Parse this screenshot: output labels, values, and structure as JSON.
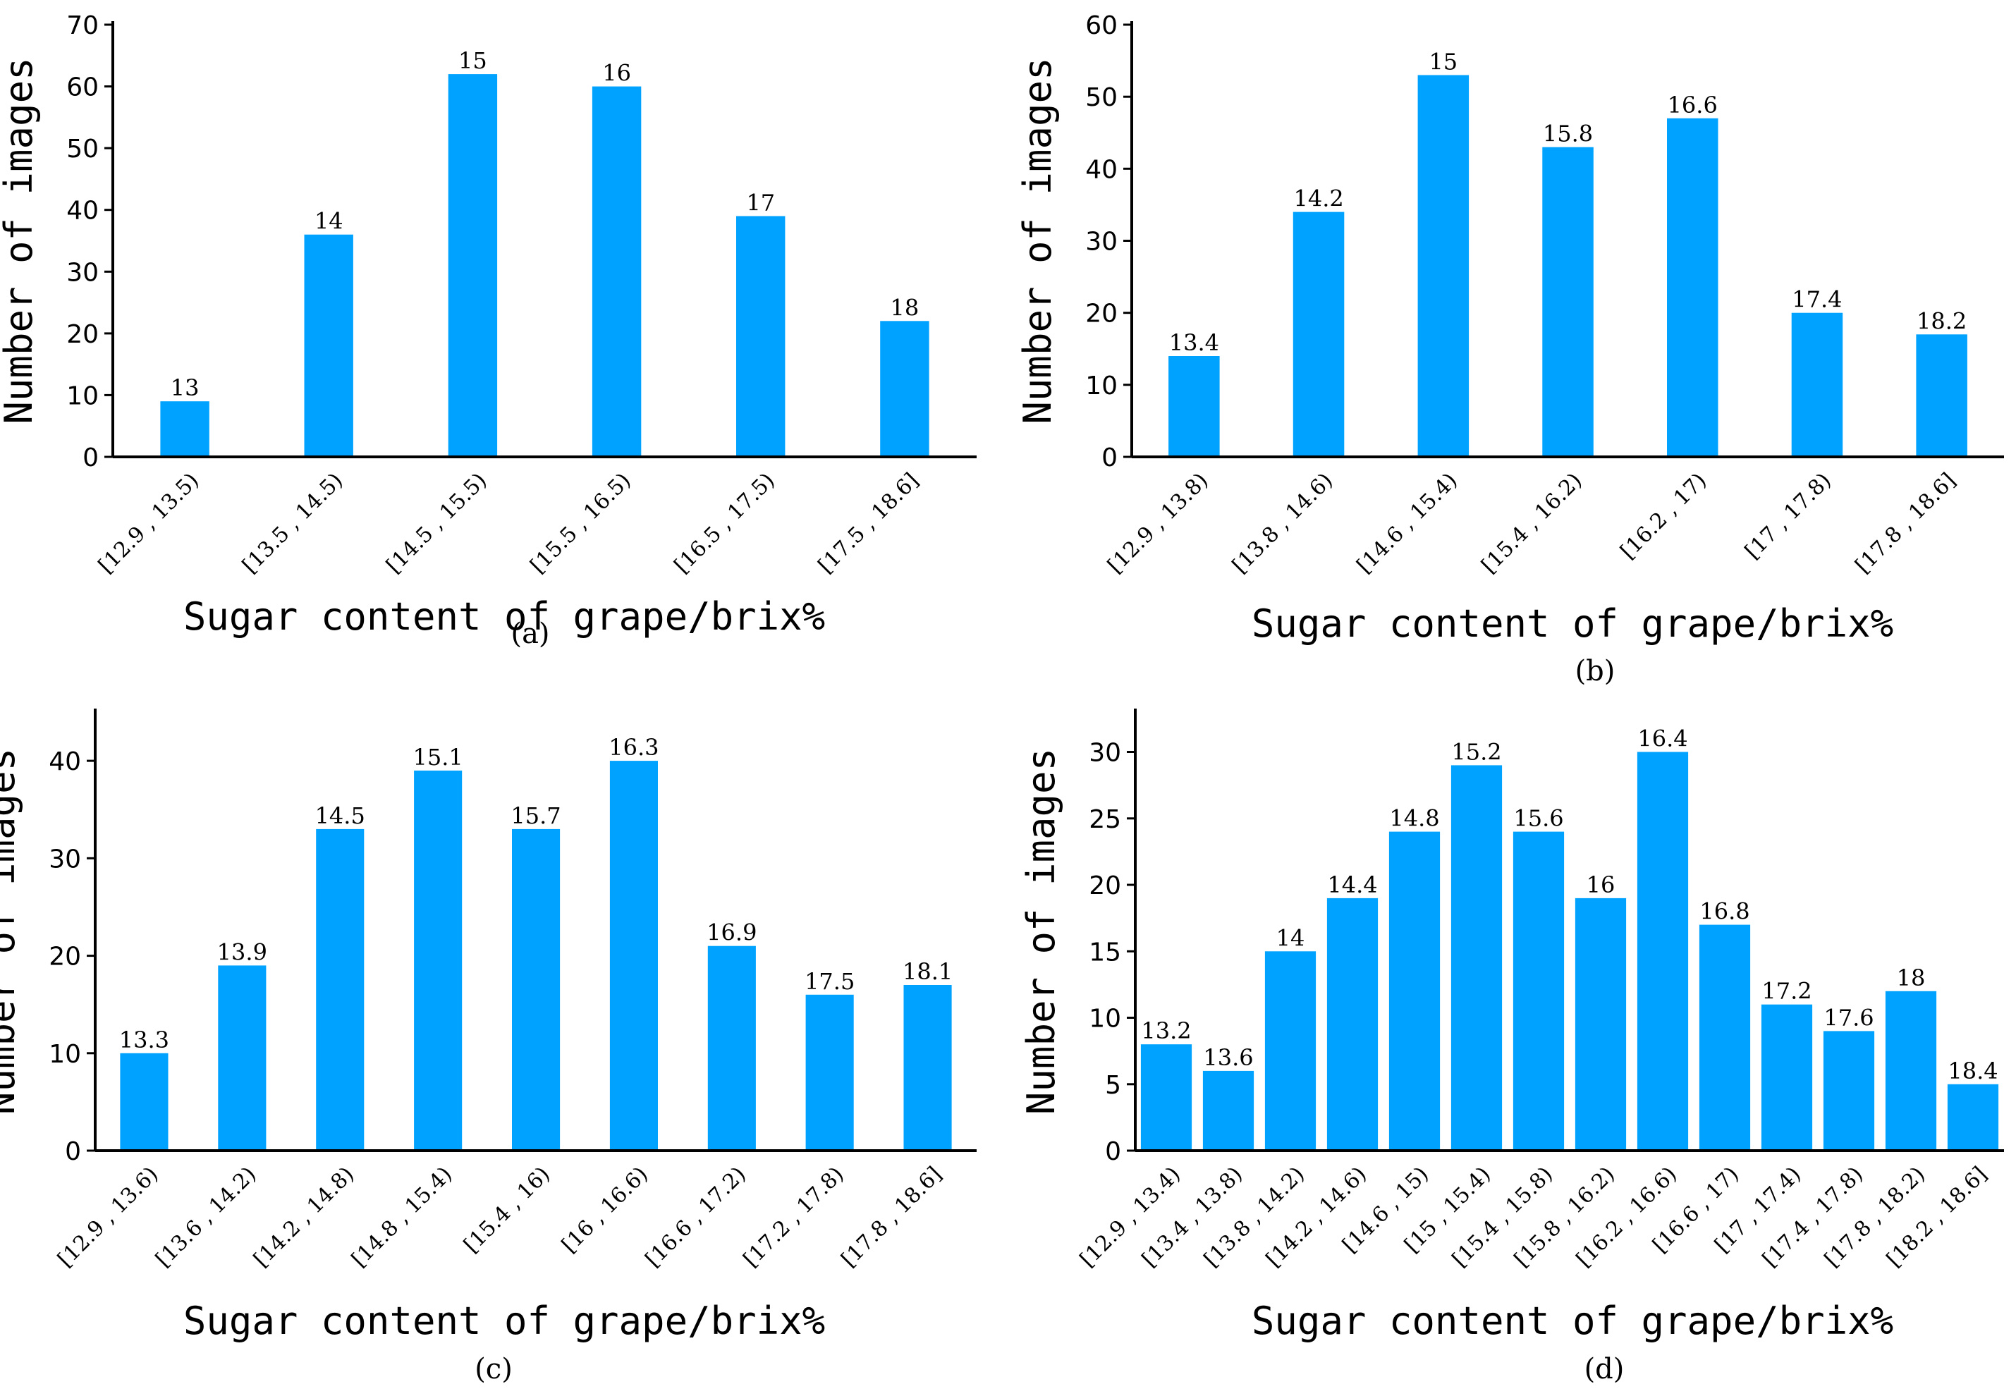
{
  "chart_data": [
    {
      "type": "bar",
      "panel": "(a)",
      "color": "#00A2FF",
      "categories": [
        "[12.9 , 13.5)",
        "[13.5 , 14.5)",
        "[14.5 , 15.5)",
        "[15.5 , 16.5)",
        "[16.5 , 17.5)",
        "[17.5 , 18.6]"
      ],
      "values": [
        9,
        36,
        62,
        60,
        39,
        22
      ],
      "data_labels": [
        "13",
        "14",
        "15",
        "16",
        "17",
        "18"
      ],
      "xlabel": "Sugar content of grape/brix%",
      "ylabel": "Number of images",
      "ylim": [
        0,
        70
      ],
      "yticks": [
        0,
        10,
        20,
        30,
        40,
        50,
        60,
        70
      ],
      "grid": false
    },
    {
      "type": "bar",
      "panel": "(b)",
      "color": "#00A2FF",
      "categories": [
        "[12.9 , 13.8)",
        "[13.8 , 14.6)",
        "[14.6 , 15.4)",
        "[15.4 , 16.2)",
        "[16.2 , 17)",
        "[17 , 17.8)",
        "[17.8 , 18.6]"
      ],
      "values": [
        14,
        34,
        53,
        43,
        47,
        20,
        17
      ],
      "data_labels": [
        "13.4",
        "14.2",
        "15",
        "15.8",
        "16.6",
        "17.4",
        "18.2"
      ],
      "xlabel": "Sugar content of grape/brix%",
      "ylabel": "Number of images",
      "ylim": [
        0,
        60
      ],
      "yticks": [
        0,
        10,
        20,
        30,
        40,
        50,
        60
      ],
      "grid": false
    },
    {
      "type": "bar",
      "panel": "(c)",
      "color": "#00A2FF",
      "categories": [
        "[12.9 , 13.6)",
        "[13.6 , 14.2)",
        "[14.2 , 14.8)",
        "[14.8 , 15.4)",
        "[15.4 , 16)",
        "[16 , 16.6)",
        "[16.6 , 17.2)",
        "[17.2 , 17.8)",
        "[17.8 , 18.6]"
      ],
      "values": [
        10,
        19,
        33,
        39,
        33,
        40,
        21,
        16,
        17
      ],
      "data_labels": [
        "13.3",
        "13.9",
        "14.5",
        "15.1",
        "15.7",
        "16.3",
        "16.9",
        "17.5",
        "18.1"
      ],
      "xlabel": "Sugar content of grape/brix%",
      "ylabel": "Number of images",
      "ylim": [
        0,
        45
      ],
      "yticks": [
        0,
        10,
        20,
        30,
        40
      ],
      "grid": false
    },
    {
      "type": "bar",
      "panel": "(d)",
      "color": "#00A2FF",
      "categories": [
        "[12.9 , 13.4)",
        "[13.4 , 13.8)",
        "[13.8 , 14.2)",
        "[14.2 , 14.6)",
        "[14.6 , 15)",
        "[15 , 15.4)",
        "[15.4 , 15.8)",
        "[15.8 , 16.2)",
        "[16.2 , 16.6)",
        "[16.6 , 17)",
        "[17 , 17.4)",
        "[17.4 , 17.8)",
        "[17.8 , 18.2)",
        "[18.2 , 18.6]"
      ],
      "values": [
        8,
        6,
        15,
        19,
        24,
        29,
        24,
        19,
        30,
        17,
        11,
        9,
        12,
        5
      ],
      "data_labels": [
        "13.2",
        "13.6",
        "14",
        "14.4",
        "14.8",
        "15.2",
        "15.6",
        "16",
        "16.4",
        "16.8",
        "17.2",
        "17.6",
        "18",
        "18.4"
      ],
      "xlabel": "Sugar content of grape/brix%",
      "ylabel": "Number of images",
      "ylim": [
        0,
        33
      ],
      "yticks": [
        0,
        5,
        10,
        15,
        20,
        25,
        30
      ],
      "grid": false
    }
  ]
}
